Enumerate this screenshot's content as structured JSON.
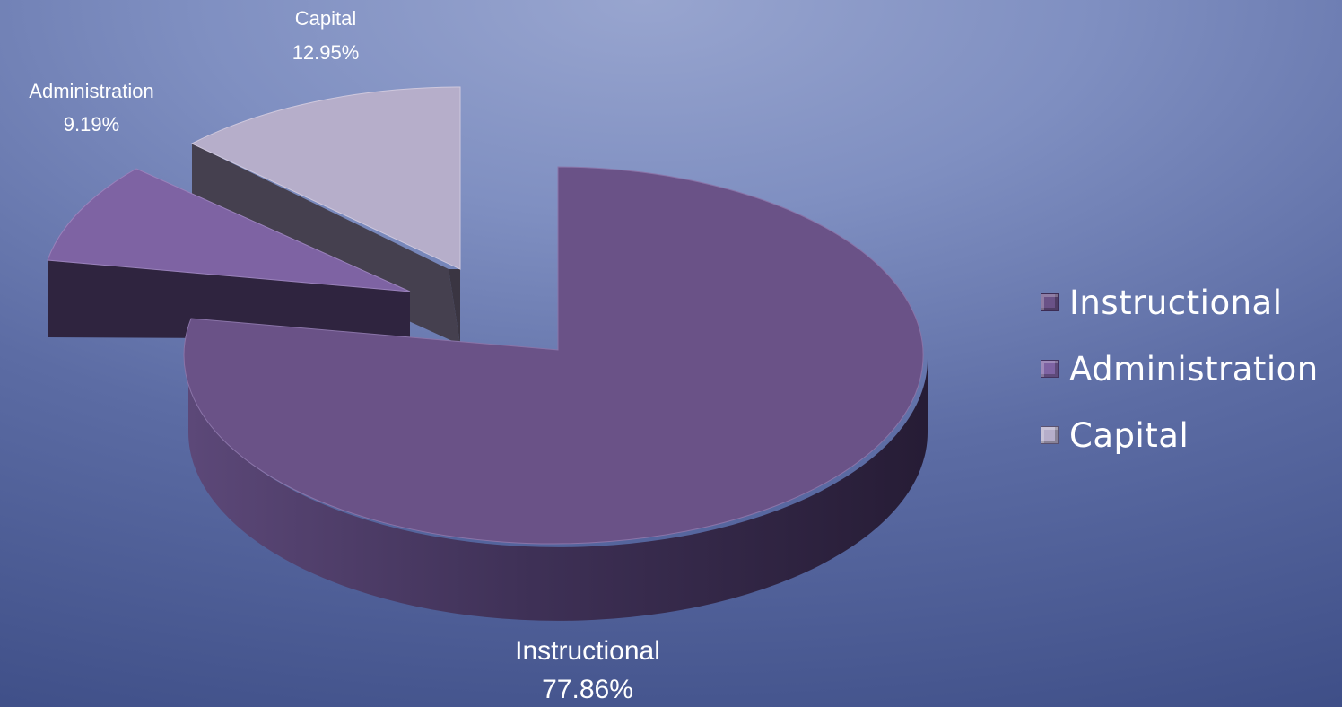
{
  "chart_data": {
    "type": "pie",
    "style": "3d-exploded",
    "slices": [
      {
        "label": "Instructional",
        "value": 77.86,
        "value_label": "77.86%",
        "color": "#6a5287"
      },
      {
        "label": "Administration",
        "value": 9.19,
        "value_label": "9.19%",
        "color": "#7e63a3"
      },
      {
        "label": "Capital",
        "value": 12.95,
        "value_label": "12.95%",
        "color": "#b6aeca"
      }
    ],
    "legend": {
      "placement": "right",
      "entries": [
        "Instructional",
        "Administration",
        "Capital"
      ]
    }
  }
}
